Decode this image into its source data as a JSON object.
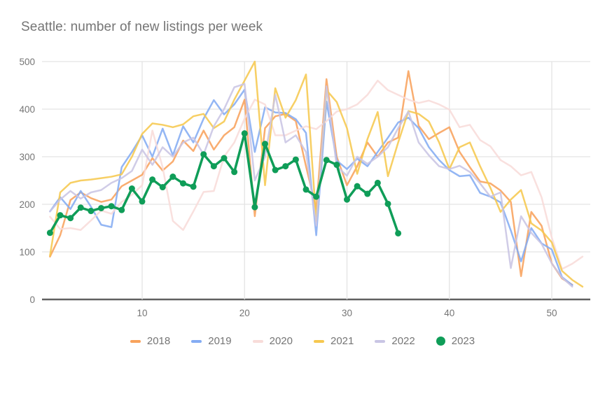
{
  "title": "Seattle: number of new listings per week",
  "colors": {
    "title_text": "#757575",
    "axis_text": "#757575",
    "gridline": "#e3e3e3",
    "axis_line": "#616161",
    "background": "#ffffff"
  },
  "chart_data": {
    "type": "line",
    "title": "Seattle: number of new listings per week",
    "xlabel": "",
    "ylabel": "",
    "x_ticks": [
      10,
      20,
      30,
      40,
      50
    ],
    "y_ticks": [
      0,
      100,
      200,
      300,
      400,
      500
    ],
    "xlim": [
      1,
      53
    ],
    "ylim": [
      0,
      500
    ],
    "grid": true,
    "legend_position": "bottom",
    "series": [
      {
        "name": "2018",
        "color": "#f8a25c",
        "style": "line",
        "values": [
          90,
          135,
          209,
          225,
          213,
          205,
          210,
          238,
          250,
          262,
          297,
          271,
          290,
          334,
          312,
          355,
          315,
          345,
          362,
          420,
          175,
          360,
          385,
          390,
          375,
          280,
          190,
          463,
          300,
          240,
          280,
          330,
          300,
          330,
          340,
          480,
          365,
          337,
          350,
          362,
          310,
          278,
          248,
          244,
          229,
          205,
          49,
          184,
          155,
          76,
          44,
          31
        ]
      },
      {
        "name": "2019",
        "color": "#84acf3",
        "style": "line",
        "values": [
          185,
          215,
          190,
          228,
          195,
          157,
          152,
          278,
          310,
          345,
          300,
          359,
          303,
          364,
          330,
          380,
          419,
          389,
          410,
          441,
          310,
          404,
          393,
          392,
          379,
          350,
          135,
          416,
          292,
          274,
          296,
          280,
          310,
          340,
          372,
          382,
          360,
          320,
          293,
          272,
          259,
          261,
          224,
          216,
          204,
          145,
          80,
          150,
          118,
          105,
          47,
          30
        ]
      },
      {
        "name": "2020",
        "color": "#f8dcd9",
        "style": "line",
        "values": [
          174,
          148,
          150,
          146,
          166,
          187,
          180,
          205,
          220,
          240,
          355,
          278,
          165,
          146,
          185,
          226,
          228,
          300,
          330,
          380,
          420,
          410,
          345,
          345,
          355,
          364,
          358,
          375,
          395,
          400,
          410,
          430,
          460,
          440,
          430,
          420,
          413,
          418,
          410,
          399,
          362,
          367,
          335,
          322,
          293,
          280,
          261,
          268,
          215,
          130,
          64,
          75,
          90
        ]
      },
      {
        "name": "2021",
        "color": "#f6c84f",
        "style": "line",
        "values": [
          92,
          225,
          245,
          250,
          252,
          255,
          258,
          263,
          300,
          348,
          370,
          367,
          362,
          368,
          385,
          390,
          360,
          374,
          420,
          460,
          500,
          240,
          444,
          382,
          419,
          473,
          165,
          440,
          415,
          360,
          264,
          337,
          394,
          259,
          330,
          396,
          390,
          374,
          330,
          274,
          320,
          330,
          280,
          235,
          184,
          210,
          230,
          160,
          145,
          120,
          60,
          41,
          27
        ]
      },
      {
        "name": "2022",
        "color": "#c9c5e4",
        "style": "line",
        "values": [
          185,
          210,
          228,
          212,
          225,
          230,
          245,
          255,
          270,
          315,
          283,
          320,
          300,
          330,
          340,
          305,
          364,
          400,
          446,
          453,
          250,
          300,
          430,
          330,
          345,
          310,
          155,
          448,
          280,
          260,
          300,
          285,
          300,
          320,
          360,
          395,
          330,
          303,
          280,
          274,
          281,
          268,
          244,
          216,
          225,
          66,
          175,
          140,
          117,
          76,
          46,
          27
        ]
      },
      {
        "name": "2023",
        "color": "#0f9d58",
        "style": "line+marker",
        "values": [
          140,
          177,
          171,
          193,
          186,
          192,
          196,
          188,
          233,
          206,
          252,
          236,
          258,
          244,
          237,
          305,
          280,
          297,
          268,
          349,
          194,
          327,
          272,
          280,
          294,
          231,
          216,
          293,
          283,
          210,
          238,
          222,
          245,
          201,
          139
        ]
      }
    ]
  }
}
